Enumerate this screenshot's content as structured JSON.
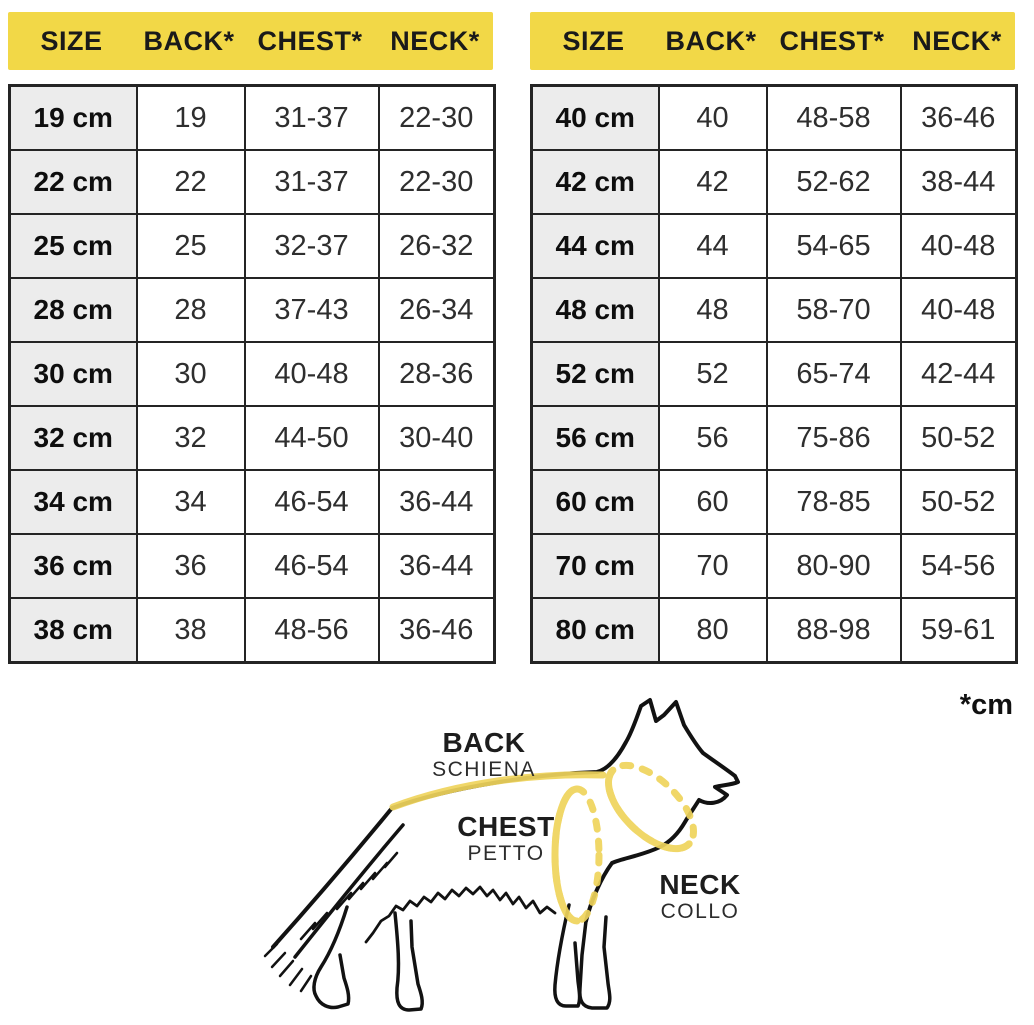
{
  "unit_note": "*cm",
  "colors": {
    "header_yellow": "#F2D847",
    "accent_yellow": "#EFD45C",
    "size_column_gray": "#ECECEC",
    "border_dark": "#242424",
    "text_dark": "#111111"
  },
  "chart_data": [
    {
      "type": "table",
      "headers": [
        "SIZE",
        "BACK*",
        "CHEST*",
        "NECK*"
      ],
      "rows": [
        [
          "19 cm",
          "19",
          "31-37",
          "22-30"
        ],
        [
          "22 cm",
          "22",
          "31-37",
          "22-30"
        ],
        [
          "25 cm",
          "25",
          "32-37",
          "26-32"
        ],
        [
          "28 cm",
          "28",
          "37-43",
          "26-34"
        ],
        [
          "30 cm",
          "30",
          "40-48",
          "28-36"
        ],
        [
          "32 cm",
          "32",
          "44-50",
          "30-40"
        ],
        [
          "34 cm",
          "34",
          "46-54",
          "36-44"
        ],
        [
          "36 cm",
          "36",
          "46-54",
          "36-44"
        ],
        [
          "38 cm",
          "38",
          "48-56",
          "36-46"
        ]
      ]
    },
    {
      "type": "table",
      "headers": [
        "SIZE",
        "BACK*",
        "CHEST*",
        "NECK*"
      ],
      "rows": [
        [
          "40 cm",
          "40",
          "48-58",
          "36-46"
        ],
        [
          "42 cm",
          "42",
          "52-62",
          "38-44"
        ],
        [
          "44 cm",
          "44",
          "54-65",
          "40-48"
        ],
        [
          "48 cm",
          "48",
          "58-70",
          "40-48"
        ],
        [
          "52 cm",
          "52",
          "65-74",
          "42-44"
        ],
        [
          "56 cm",
          "56",
          "75-86",
          "50-52"
        ],
        [
          "60 cm",
          "60",
          "78-85",
          "50-52"
        ],
        [
          "70 cm",
          "70",
          "80-90",
          "54-56"
        ],
        [
          "80 cm",
          "80",
          "88-98",
          "59-61"
        ]
      ]
    }
  ],
  "diagram": {
    "back": {
      "label": "BACK",
      "sublabel": "SCHIENA"
    },
    "chest": {
      "label": "CHEST",
      "sublabel": "PETTO"
    },
    "neck": {
      "label": "NECK",
      "sublabel": "COLLO"
    }
  }
}
